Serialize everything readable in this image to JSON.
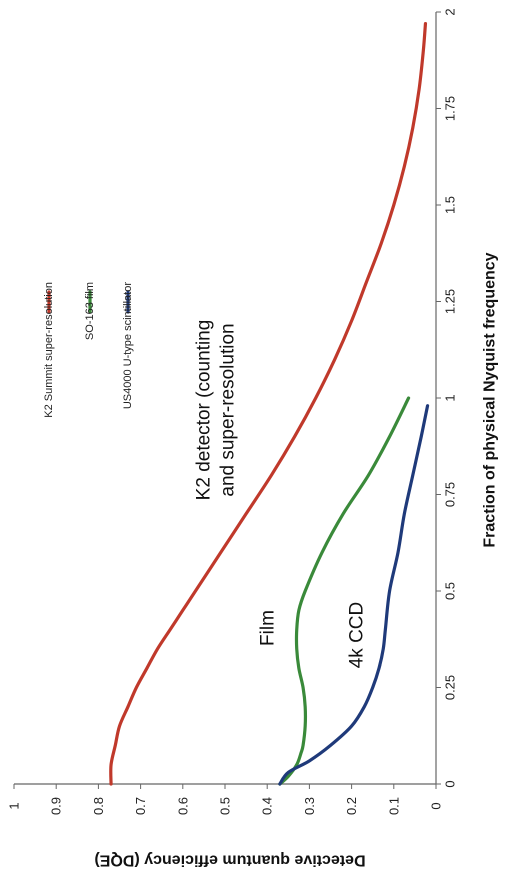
{
  "chart_data": {
    "type": "line",
    "xlabel": "Fraction of physical Nyquist frequency",
    "ylabel": "Detective quantum efficiency (DQE)",
    "xlim": [
      0,
      2
    ],
    "ylim": [
      0,
      1
    ],
    "x_ticks": [
      "0",
      "0.25",
      "0.5",
      "0.75",
      "1",
      "1.25",
      "1.5",
      "1.75",
      "2"
    ],
    "y_ticks": [
      "0",
      "0.1",
      "0.2",
      "0.3",
      "0.4",
      "0.5",
      "0.6",
      "0.7",
      "0.8",
      "0.9",
      "1"
    ],
    "grid": false,
    "orientation": "rotated 90 degrees clockwise",
    "legend_position": "top-right",
    "series": [
      {
        "name": "K2 Summit super-resolution",
        "color": "#c0392b",
        "x": [
          0,
          0.05,
          0.1,
          0.15,
          0.2,
          0.25,
          0.3,
          0.35,
          0.4,
          0.45,
          0.5,
          0.6,
          0.7,
          0.8,
          0.9,
          1.0,
          1.1,
          1.2,
          1.3,
          1.4,
          1.5,
          1.6,
          1.7,
          1.8,
          1.9,
          1.97
        ],
        "y": [
          0.77,
          0.77,
          0.76,
          0.75,
          0.73,
          0.71,
          0.685,
          0.66,
          0.63,
          0.6,
          0.57,
          0.51,
          0.45,
          0.39,
          0.335,
          0.285,
          0.24,
          0.2,
          0.165,
          0.13,
          0.1,
          0.075,
          0.055,
          0.04,
          0.03,
          0.025
        ]
      },
      {
        "name": "SO-163 film",
        "color": "#3a8a3a",
        "x": [
          0,
          0.02,
          0.05,
          0.08,
          0.1,
          0.15,
          0.2,
          0.25,
          0.3,
          0.35,
          0.4,
          0.45,
          0.5,
          0.6,
          0.7,
          0.8,
          0.9,
          1.0
        ],
        "y": [
          0.37,
          0.35,
          0.33,
          0.32,
          0.315,
          0.31,
          0.31,
          0.315,
          0.325,
          0.33,
          0.33,
          0.325,
          0.31,
          0.27,
          0.22,
          0.16,
          0.11,
          0.065
        ]
      },
      {
        "name": "US4000 U-type scintillator",
        "color": "#1f3a7a",
        "x": [
          0,
          0.03,
          0.06,
          0.1,
          0.15,
          0.2,
          0.25,
          0.3,
          0.35,
          0.4,
          0.5,
          0.6,
          0.7,
          0.8,
          0.9,
          0.98
        ],
        "y": [
          0.37,
          0.35,
          0.3,
          0.25,
          0.2,
          0.17,
          0.15,
          0.135,
          0.125,
          0.12,
          0.11,
          0.09,
          0.075,
          0.055,
          0.035,
          0.02
        ]
      }
    ],
    "annotations": [
      {
        "text": "K2 detector (counting",
        "x": 0.95,
        "y": 0.44
      },
      {
        "text": "and super-resolution",
        "x": 0.95,
        "y": 0.4
      },
      {
        "text": "Film",
        "x": 0.3,
        "y": 0.4
      },
      {
        "text": "4k CCD",
        "x": 0.45,
        "y": 0.22
      }
    ]
  }
}
